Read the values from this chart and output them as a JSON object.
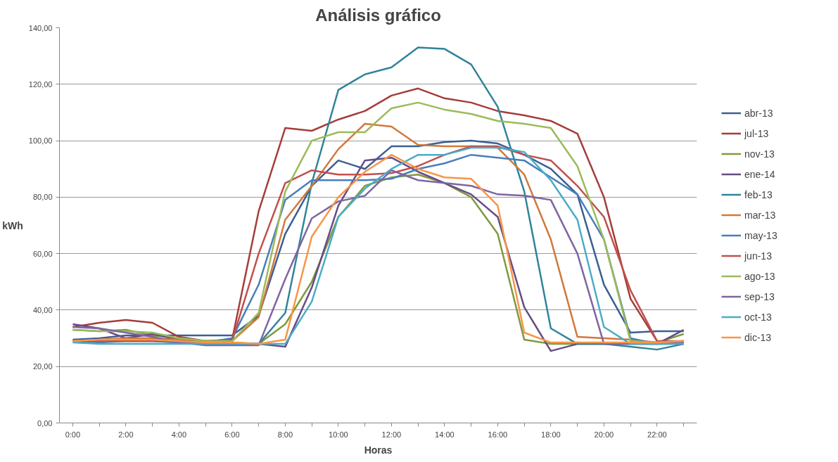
{
  "chart_data": {
    "type": "line",
    "title": "Análisis gráfico",
    "xlabel": "Horas",
    "ylabel": "kWh",
    "x": [
      0,
      1,
      2,
      3,
      4,
      5,
      6,
      7,
      8,
      9,
      10,
      11,
      12,
      13,
      14,
      15,
      16,
      17,
      18,
      19,
      20,
      21,
      22,
      23
    ],
    "xlim": [
      -0.5,
      23.5
    ],
    "xticks": [
      {
        "value": 0,
        "label": "0:00"
      },
      {
        "value": 1,
        "label": null
      },
      {
        "value": 2,
        "label": "2:00"
      },
      {
        "value": 3,
        "label": null
      },
      {
        "value": 4,
        "label": "4:00"
      },
      {
        "value": 5,
        "label": null
      },
      {
        "value": 6,
        "label": "6:00"
      },
      {
        "value": 7,
        "label": null
      },
      {
        "value": 8,
        "label": "8:00"
      },
      {
        "value": 9,
        "label": null
      },
      {
        "value": 10,
        "label": "10:00"
      },
      {
        "value": 11,
        "label": null
      },
      {
        "value": 12,
        "label": "12:00"
      },
      {
        "value": 13,
        "label": null
      },
      {
        "value": 14,
        "label": "14:00"
      },
      {
        "value": 15,
        "label": null
      },
      {
        "value": 16,
        "label": "16:00"
      },
      {
        "value": 17,
        "label": null
      },
      {
        "value": 18,
        "label": "18:00"
      },
      {
        "value": 19,
        "label": null
      },
      {
        "value": 20,
        "label": "20:00"
      },
      {
        "value": 21,
        "label": null
      },
      {
        "value": 22,
        "label": "22:00"
      },
      {
        "value": 23,
        "label": null
      }
    ],
    "ylim": [
      0,
      140
    ],
    "yticks": [
      {
        "value": 0,
        "label": "0,00"
      },
      {
        "value": 20,
        "label": "20,00"
      },
      {
        "value": 40,
        "label": "40,00"
      },
      {
        "value": 60,
        "label": "60,00"
      },
      {
        "value": 80,
        "label": "80,00"
      },
      {
        "value": 100,
        "label": "100,00"
      },
      {
        "value": 120,
        "label": "120,00"
      },
      {
        "value": 140,
        "label": "140,00"
      }
    ],
    "grid": "y",
    "legend": "right",
    "marker": "none",
    "line_style": "solid",
    "series": [
      {
        "name": "abr-13",
        "color": "#3a5f94",
        "values": [
          29.5,
          30,
          31,
          31,
          31,
          31,
          31,
          38,
          67,
          84,
          93,
          90,
          98,
          98,
          99.5,
          100,
          99,
          95,
          90,
          81,
          49,
          32,
          32.5,
          32.5
        ]
      },
      {
        "name": "jul-13",
        "color": "#a33e3b",
        "values": [
          34,
          35.5,
          36.5,
          35.5,
          30.5,
          29,
          29.5,
          75,
          104.5,
          103.5,
          107.5,
          110.5,
          116,
          118.5,
          115,
          113.5,
          110.5,
          109,
          107,
          102.5,
          80,
          44,
          29,
          28.5
        ]
      },
      {
        "name": "nov-13",
        "color": "#7f9a3e",
        "values": [
          33,
          32.5,
          33,
          31,
          30,
          29,
          28.5,
          28,
          35,
          50,
          73,
          84,
          87,
          88,
          85,
          80,
          67,
          29.5,
          28,
          28,
          28,
          28.5,
          28.5,
          31.5
        ]
      },
      {
        "name": "ene-14",
        "color": "#664c87",
        "values": [
          35,
          33.5,
          30,
          31.5,
          29.5,
          28,
          28,
          28,
          27,
          48,
          77,
          93,
          94,
          89,
          85,
          81,
          73,
          41,
          25.5,
          28,
          28,
          28,
          28,
          33
        ]
      },
      {
        "name": "feb-13",
        "color": "#31849b",
        "values": [
          29,
          29,
          29,
          29,
          28.5,
          28,
          28,
          28,
          39,
          85,
          118,
          123.5,
          126,
          133,
          132.5,
          127,
          112,
          82,
          33.5,
          28,
          28,
          27,
          26,
          28
        ]
      },
      {
        "name": "mar-13",
        "color": "#d0793a",
        "values": [
          29,
          29.5,
          30,
          30,
          29.5,
          29,
          29,
          37.5,
          72,
          84,
          97,
          106,
          105,
          98.5,
          98,
          98,
          97.5,
          88,
          65,
          30.5,
          30,
          29.5,
          28.5,
          29
        ]
      },
      {
        "name": "may-13",
        "color": "#4a7ebb",
        "values": [
          29,
          28.5,
          29,
          29,
          28.5,
          28.5,
          30,
          49,
          79,
          86,
          86,
          86,
          86.5,
          90,
          92,
          95,
          94,
          93,
          87,
          81,
          65,
          30,
          28,
          28
        ]
      },
      {
        "name": "jun-13",
        "color": "#c0504d",
        "values": [
          29,
          29,
          29,
          29,
          29,
          29,
          29,
          60,
          85,
          89.5,
          88,
          88,
          88.5,
          91,
          95,
          98,
          98,
          95,
          93,
          84,
          73,
          47,
          29,
          29
        ]
      },
      {
        "name": "ago-13",
        "color": "#9bbb59",
        "values": [
          33,
          32.5,
          32.5,
          32,
          30,
          29,
          29,
          39,
          82,
          100,
          103,
          103,
          111.5,
          113.5,
          111,
          109.5,
          107,
          106,
          104.5,
          91,
          65,
          29,
          28.5,
          29
        ]
      },
      {
        "name": "sep-13",
        "color": "#8064a2",
        "values": [
          34,
          33.5,
          32,
          30.5,
          28.5,
          27.5,
          27.5,
          27.5,
          51,
          72.5,
          78.5,
          80.5,
          89.5,
          86,
          85,
          84,
          81,
          80.5,
          79,
          60,
          28,
          28,
          28,
          28.5
        ]
      },
      {
        "name": "oct-13",
        "color": "#4bacc6",
        "values": [
          28.5,
          28,
          28,
          28,
          28,
          28,
          28,
          28,
          28,
          43,
          73,
          83,
          90,
          95,
          95,
          97.5,
          97.5,
          96,
          86,
          72,
          34,
          28,
          28,
          28
        ]
      },
      {
        "name": "dic-13",
        "color": "#f79646",
        "values": [
          29,
          29.5,
          29.5,
          29.5,
          29,
          28.5,
          28.5,
          28,
          29.5,
          66,
          80,
          89,
          95,
          90,
          87,
          86.5,
          77,
          32,
          28.5,
          28.5,
          28.5,
          28.5,
          28.5,
          29
        ]
      }
    ]
  }
}
